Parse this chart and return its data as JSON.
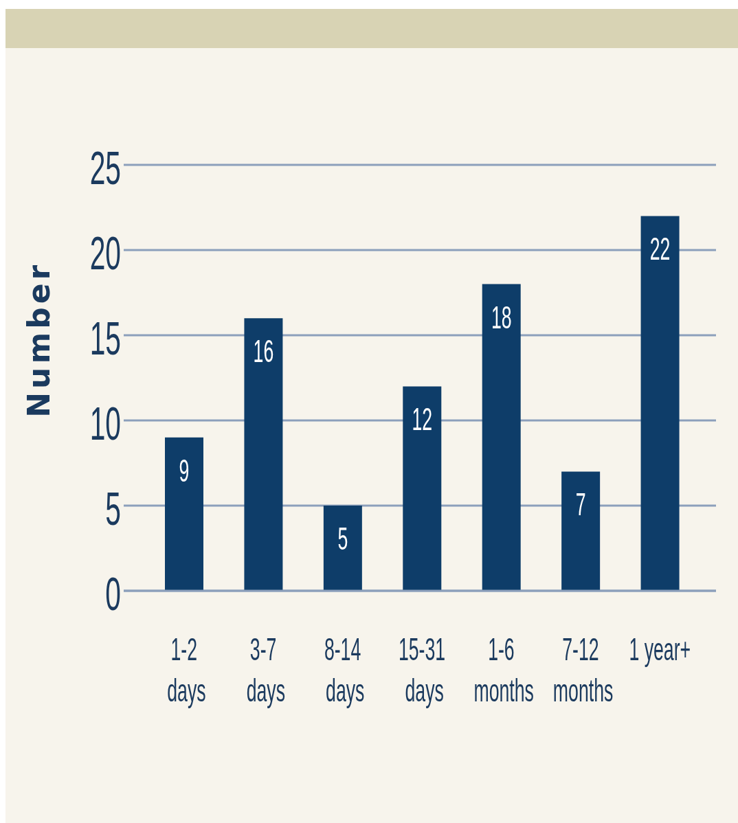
{
  "chart_data": {
    "type": "bar",
    "ylabel": "Number",
    "categories": [
      "1-2\ndays",
      "3-7\ndays",
      "8-14\ndays",
      "15-31\ndays",
      "1-6\nmonths",
      "7-12\nmonths",
      "1 year+"
    ],
    "values": [
      9,
      16,
      5,
      12,
      18,
      7,
      22
    ],
    "color": "#0e3d69",
    "ylim": [
      0,
      25
    ],
    "yticks": [
      0,
      5,
      10,
      15,
      20,
      25
    ],
    "grid": "y",
    "data_labels": true
  }
}
